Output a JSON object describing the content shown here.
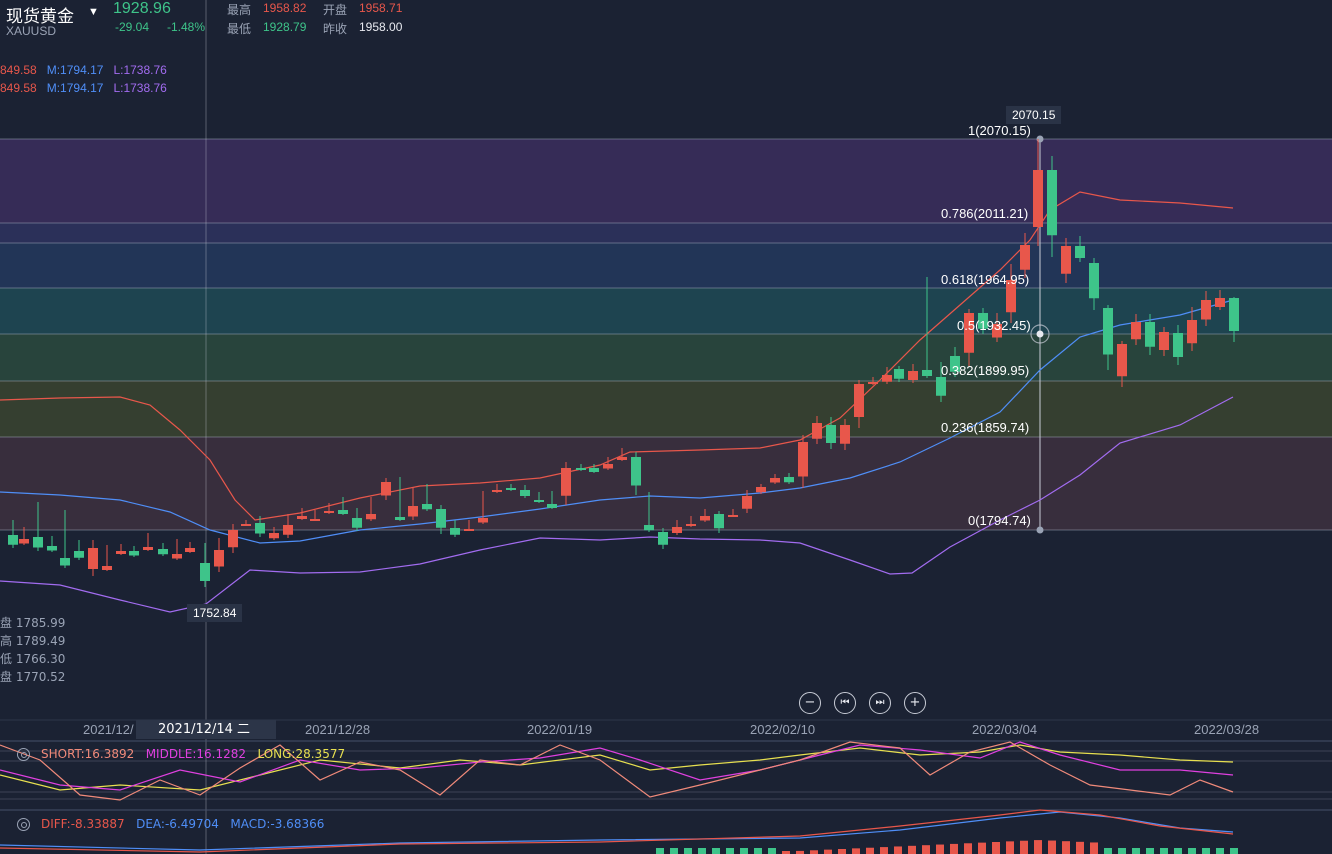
{
  "header": {
    "title": "现货黄金",
    "symbol": "XAUUSD",
    "price": "1928.96",
    "change": "-29.04",
    "change_pct": "-1.48%",
    "high_label": "最高",
    "high": "1958.82",
    "open_label": "开盘",
    "open": "1958.71",
    "low_label": "最低",
    "low": "1928.79",
    "prev_label": "昨收",
    "prev": "1958.00"
  },
  "ma_lines": [
    {
      "u": "849.58",
      "m": "M:1794.17",
      "l": "L:1738.76"
    },
    {
      "u": "849.58",
      "m": "M:1794.17",
      "l": "L:1738.76"
    }
  ],
  "ohlc_tip": [
    "盘 1785.99",
    "高 1789.49",
    "低 1766.30",
    "盘 1770.52"
  ],
  "crosshair": {
    "date": "2021/12/14 二",
    "price": "1752.84"
  },
  "fib": {
    "top_tag": "2070.15",
    "levels": [
      "1(2070.15)",
      "0.786(2011.21)",
      "0.618(1964.95)",
      "0.5(1932.45)",
      "0.382(1899.95)",
      "0.236(1859.74)",
      "0(1794.74)"
    ]
  },
  "dates": [
    "2021/12/",
    "2021/12/28",
    "2022/01/19",
    "2022/02/10",
    "2022/03/04",
    "2022/03/28"
  ],
  "controls": [
    "zoom-out",
    "prev",
    "next",
    "zoom-in"
  ],
  "rsi": {
    "short": "SHORT:16.3892",
    "middle": "MIDDLE:16.1282",
    "long": "LONG:28.3577"
  },
  "macd": {
    "diff": "DIFF:-8.33887",
    "dea": "DEA:-6.49704",
    "macd": "MACD:-3.68366"
  },
  "colors": {
    "up": "#e8574b",
    "down": "#3ec48a",
    "mid": "#4f8ef7",
    "low": "#a26cf0"
  }
}
